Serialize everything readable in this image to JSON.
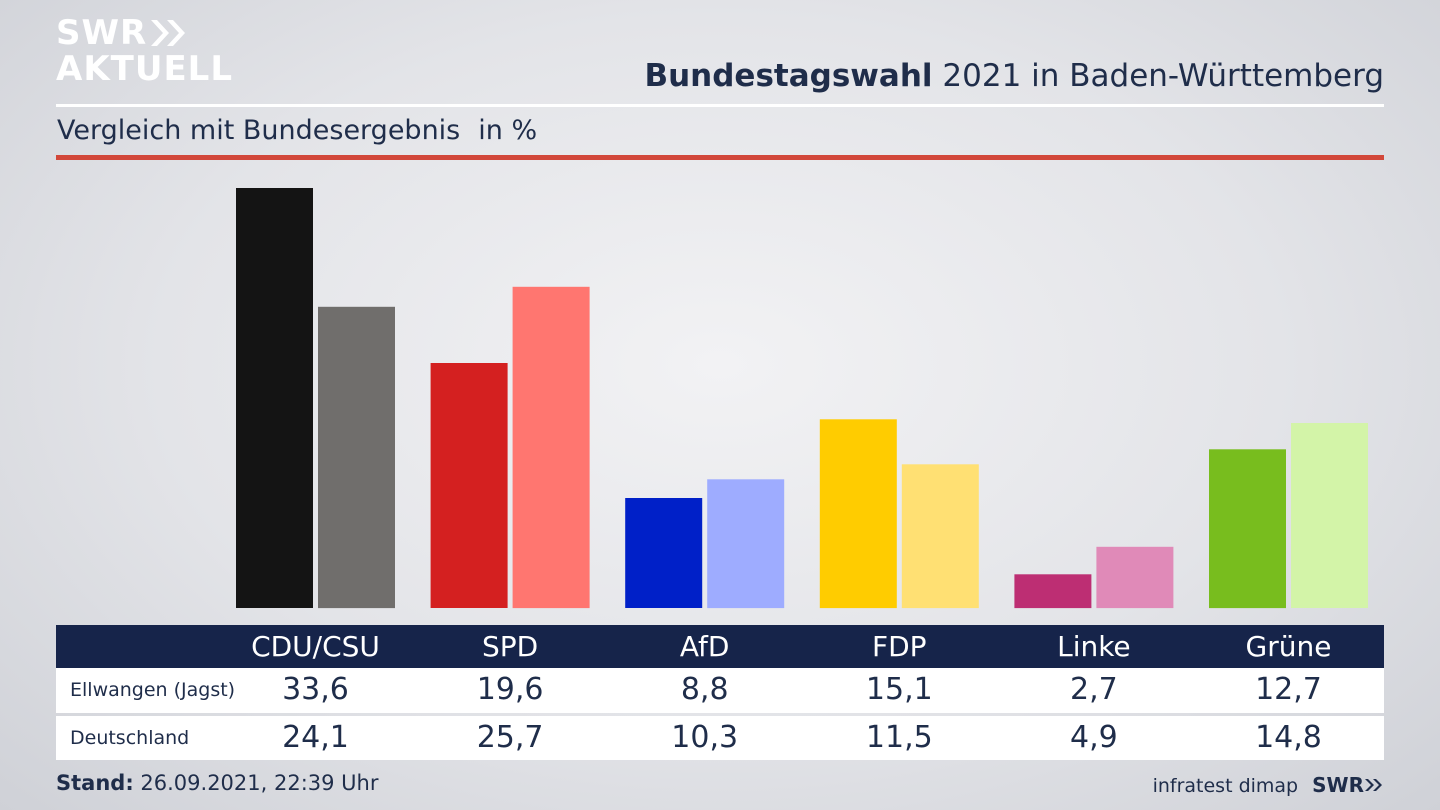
{
  "logo": {
    "line1": "SWR",
    "line2": "AKTUELL"
  },
  "header": {
    "title_bold": "Bundestagswahl",
    "title_rest": " 2021 in Baden-Württemberg",
    "subtitle": "Vergleich mit Bundesergebnis",
    "unit": "in %"
  },
  "table": {
    "row_labels": [
      "Ellwangen (Jagst)",
      "Deutschland"
    ]
  },
  "footer": {
    "stand_label": "Stand:",
    "stand_value": " 26.09.2021, 22:39 Uhr",
    "source": "infratest dimap",
    "brand": "SWR"
  },
  "chart_data": {
    "type": "bar",
    "title": "Bundestagswahl 2021 in Baden-Württemberg",
    "subtitle": "Vergleich mit Bundesergebnis",
    "unit": "in %",
    "categories": [
      "CDU/CSU",
      "SPD",
      "AfD",
      "FDP",
      "Linke",
      "Grüne"
    ],
    "series": [
      {
        "name": "Ellwangen (Jagst)",
        "values": [
          33.6,
          19.6,
          8.8,
          15.1,
          2.7,
          12.7
        ],
        "labels": [
          "33,6",
          "19,6",
          "8,8",
          "15,1",
          "2,7",
          "12,7"
        ],
        "colors": [
          "#141414",
          "#d42020",
          "#0020c8",
          "#ffcc00",
          "#bd2e73",
          "#78bd1e"
        ]
      },
      {
        "name": "Deutschland",
        "values": [
          24.1,
          25.7,
          10.3,
          11.5,
          4.9,
          14.8
        ],
        "labels": [
          "24,1",
          "25,7",
          "10,3",
          "11,5",
          "4,9",
          "14,8"
        ],
        "colors": [
          "#706e6c",
          "#ff7670",
          "#9eacff",
          "#ffe073",
          "#e08ab8",
          "#d3f4a8"
        ]
      }
    ],
    "ylim": [
      0,
      33.6
    ],
    "grid": false,
    "legend": "table below chart"
  }
}
